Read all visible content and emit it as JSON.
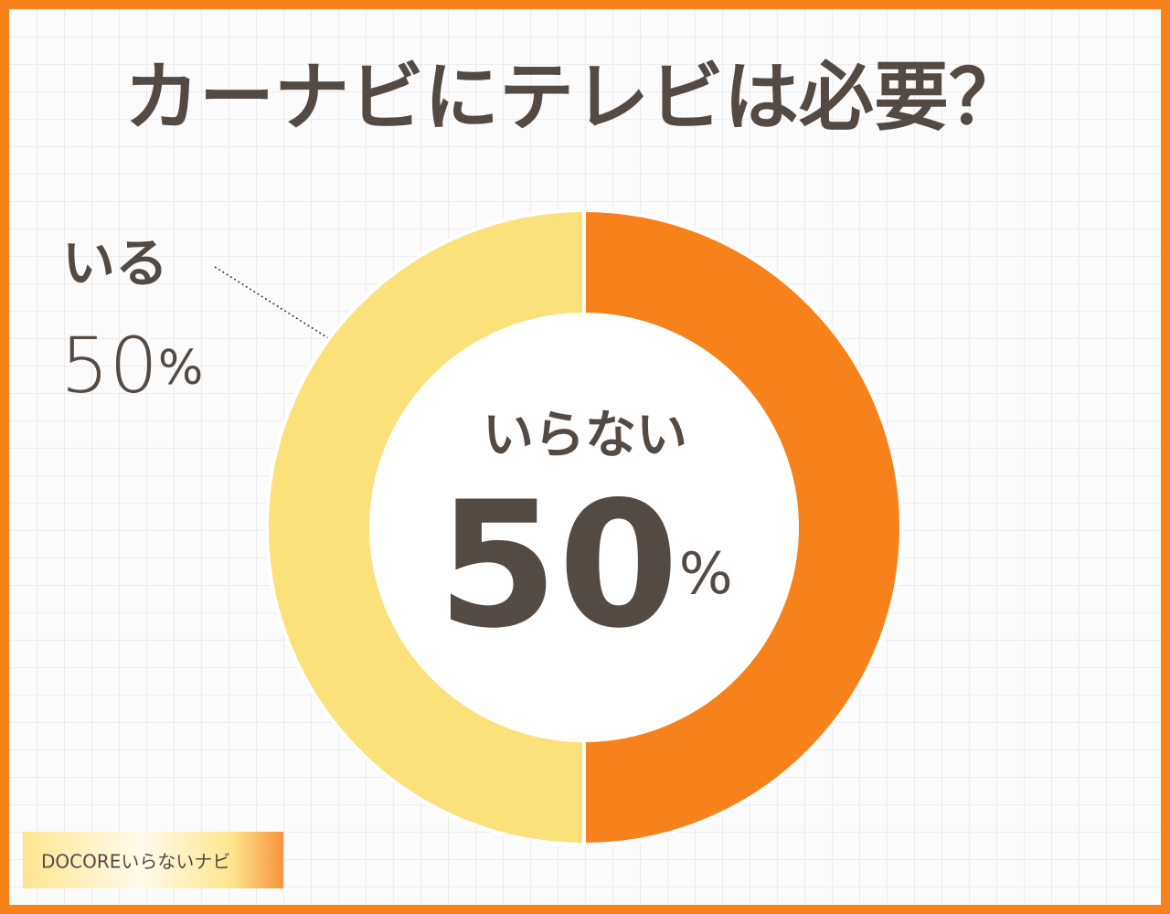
{
  "title": "カーナビにテレビは必要？",
  "chart_data": {
    "type": "pie",
    "donut": true,
    "categories": [
      "いらない",
      "いる"
    ],
    "values": [
      50,
      50
    ],
    "value_labels": [
      "50%",
      "50%"
    ],
    "colors": [
      "#f7821b",
      "#fce07a"
    ]
  },
  "watermark": "DOCOREいらないナビ"
}
